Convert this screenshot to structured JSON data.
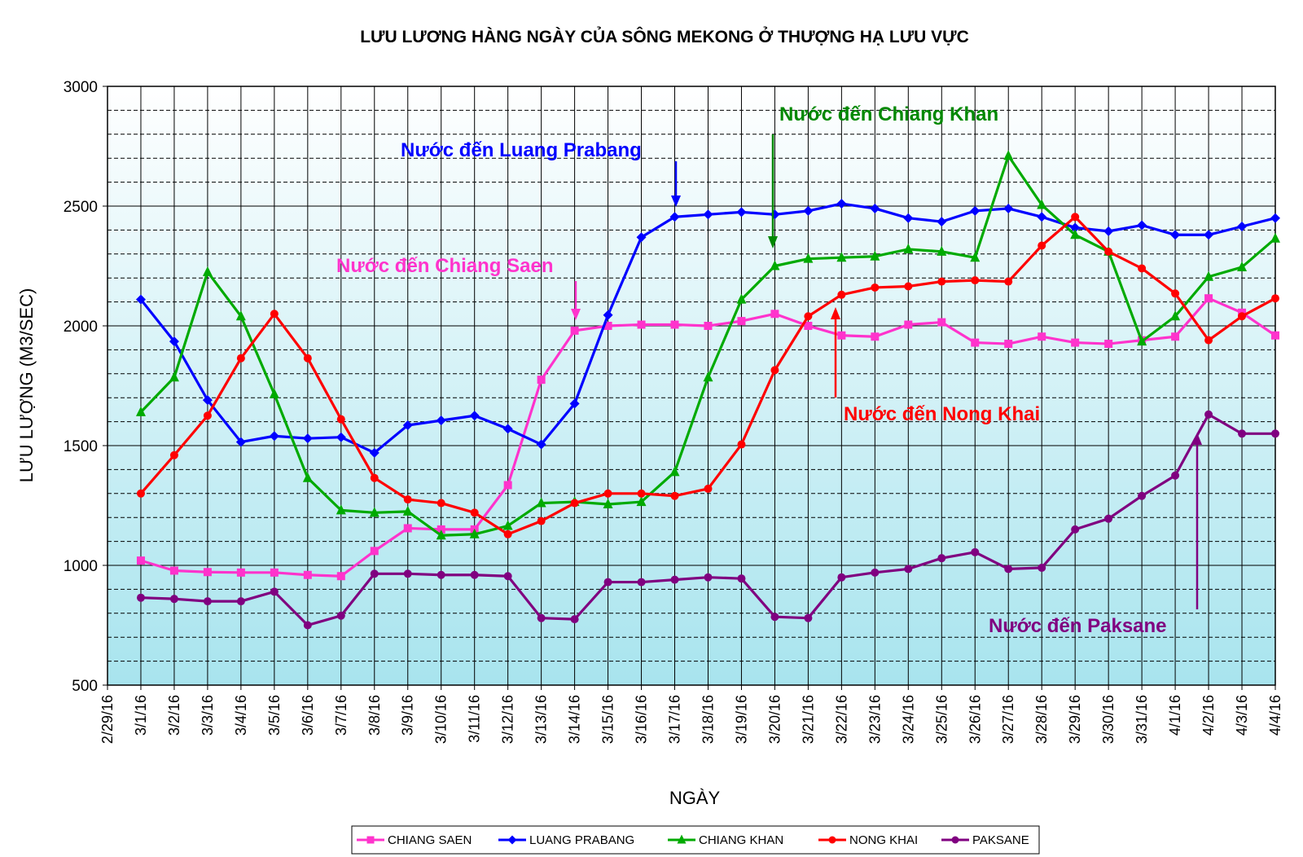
{
  "chart_data": {
    "type": "line",
    "title": "LƯU LƯƠNG HÀNG NGÀY CỦA SÔNG MEKONG Ở THƯỢNG HẠ LƯU VỰC",
    "xlabel": "NGÀY",
    "ylabel": "LƯU LƯỢNG (M3/SEC)",
    "ylim": [
      500,
      3000
    ],
    "yticks": [
      "500",
      "1000",
      "1500",
      "2000",
      "2500",
      "3000"
    ],
    "grid": true,
    "legend_position": "bottom",
    "categories": [
      "2/29/16",
      "3/1/16",
      "3/2/16",
      "3/3/16",
      "3/4/16",
      "3/5/16",
      "3/6/16",
      "3/7/16",
      "3/8/16",
      "3/9/16",
      "3/10/16",
      "3/11/16",
      "3/12/16",
      "3/13/16",
      "3/14/16",
      "3/15/16",
      "3/16/16",
      "3/17/16",
      "3/18/16",
      "3/19/16",
      "3/20/16",
      "3/21/16",
      "3/22/16",
      "3/23/16",
      "3/24/16",
      "3/25/16",
      "3/26/16",
      "3/27/16",
      "3/28/16",
      "3/29/16",
      "3/30/16",
      "3/31/16",
      "4/1/16",
      "4/2/16",
      "4/3/16",
      "4/4/16"
    ],
    "series": [
      {
        "name": "CHIANG SAEN",
        "color": "#ff33cc",
        "marker": "square",
        "values": [
          null,
          1020,
          978,
          972,
          970,
          970,
          960,
          955,
          1060,
          1155,
          1150,
          1150,
          1335,
          1775,
          1980,
          2000,
          2005,
          2005,
          2000,
          2020,
          2050,
          2000,
          1960,
          1955,
          2005,
          2015,
          1930,
          1925,
          1955,
          1930,
          1925,
          1940,
          1955,
          2115,
          2055,
          1960
        ]
      },
      {
        "name": "LUANG PRABANG",
        "color": "#0000ff",
        "marker": "diamond",
        "values": [
          null,
          2110,
          1935,
          1690,
          1515,
          1540,
          1530,
          1535,
          1470,
          1585,
          1605,
          1625,
          1570,
          1505,
          1675,
          2045,
          2370,
          2455,
          2465,
          2475,
          2465,
          2480,
          2510,
          2490,
          2450,
          2435,
          2480,
          2490,
          2455,
          2410,
          2395,
          2420,
          2380,
          2380,
          2415,
          2450
        ]
      },
      {
        "name": "CHIANG KHAN",
        "color": "#00aa00",
        "marker": "triangle",
        "values": [
          null,
          1640,
          1785,
          2225,
          2040,
          1715,
          1365,
          1230,
          1220,
          1225,
          1125,
          1130,
          1165,
          1260,
          1265,
          1255,
          1265,
          1390,
          1785,
          2110,
          2250,
          2280,
          2285,
          2290,
          2320,
          2310,
          2285,
          2710,
          2505,
          2380,
          2310,
          1935,
          2040,
          2205,
          2245,
          2365
        ]
      },
      {
        "name": "NONG KHAI",
        "color": "#ff0000",
        "marker": "circle",
        "values": [
          null,
          1300,
          1460,
          1625,
          1865,
          2050,
          1865,
          1610,
          1365,
          1275,
          1260,
          1220,
          1130,
          1185,
          1260,
          1300,
          1300,
          1290,
          1320,
          1505,
          1815,
          2040,
          2130,
          2160,
          2165,
          2185,
          2190,
          2185,
          2335,
          2455,
          2310,
          2240,
          2135,
          1940,
          2040,
          2115
        ]
      },
      {
        "name": "PAKSANE",
        "color": "#800080",
        "marker": "circle",
        "values": [
          null,
          865,
          860,
          850,
          850,
          890,
          750,
          790,
          965,
          965,
          960,
          960,
          955,
          780,
          775,
          930,
          930,
          940,
          950,
          945,
          785,
          780,
          950,
          970,
          985,
          1030,
          1055,
          985,
          990,
          1150,
          1195,
          1290,
          1375,
          1630,
          1550,
          1550
        ]
      }
    ],
    "annotations": [
      {
        "text": "Nước đến Luang Prabang",
        "color": "#0000ff"
      },
      {
        "text": "Nước đến Chiang Khan",
        "color": "#008800"
      },
      {
        "text": "Nước đến Chiang Saen",
        "color": "#ff33cc"
      },
      {
        "text": "Nước đến Nong Khai",
        "color": "#ff0000"
      },
      {
        "text": "Nước đến Paksane",
        "color": "#800080"
      }
    ]
  }
}
